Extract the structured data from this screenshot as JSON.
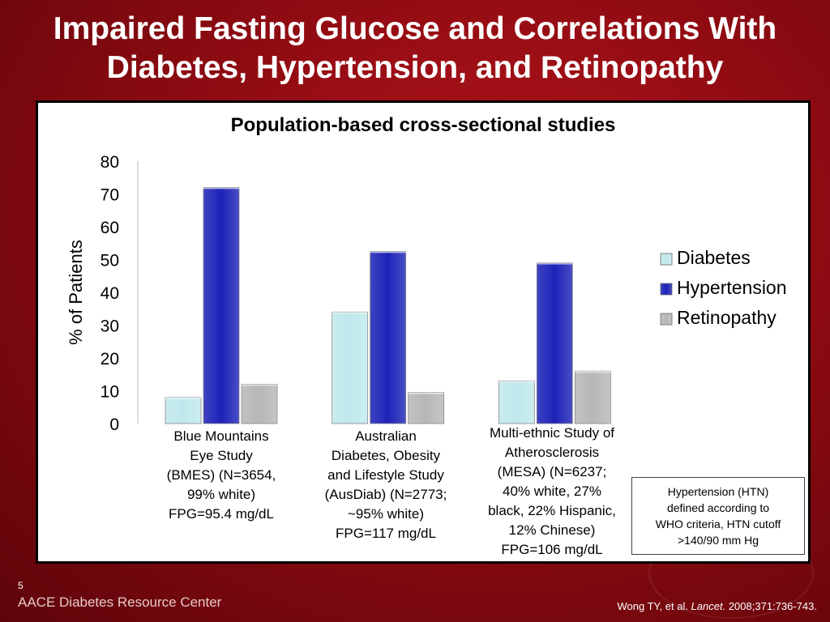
{
  "slide": {
    "title_lines": [
      "Impaired Fasting Glucose and Correlations With",
      "Diabetes, Hypertension, and Retinopathy"
    ],
    "slide_number": "5",
    "footer_brand": "AACE Diabetes Resource Center",
    "citation_prefix": "Wong TY, et al. ",
    "citation_journal": "Lancet.",
    "citation_suffix": " 2008;371:736-743."
  },
  "note": {
    "lines": [
      "Hypertension (HTN)",
      "defined according to",
      "WHO criteria, HTN cutoff",
      ">140/90 mm Hg"
    ]
  },
  "chart_data": {
    "type": "bar",
    "title": "Population-based cross-sectional studies",
    "ylabel": "% of Patients",
    "xlabel": "",
    "ylim": [
      0,
      80
    ],
    "yticks": [
      "0",
      "10",
      "20",
      "30",
      "40",
      "50",
      "60",
      "70",
      "80"
    ],
    "grid": false,
    "legend_position": "right",
    "categories": [
      [
        "Blue Mountains",
        "Eye Study",
        "(BMES) (N=3654,",
        "99% white)",
        "FPG=95.4 mg/dL"
      ],
      [
        "Australian",
        "Diabetes, Obesity",
        "and Lifestyle Study",
        "(AusDiab) (N=2773;",
        "~95% white)",
        "FPG=117 mg/dL"
      ],
      [
        "Multi-ethnic Study of",
        "Atherosclerosis",
        "(MESA) (N=6237;",
        "40% white, 27%",
        "black, 22% Hispanic,",
        "12% Chinese)",
        "FPG=106 mg/dL"
      ]
    ],
    "series": [
      {
        "name": "Diabetes",
        "values": [
          8,
          34,
          13
        ],
        "color": "#bfe8ec"
      },
      {
        "name": "Hypertension",
        "values": [
          72,
          52.5,
          49
        ],
        "color": "#1c22b8"
      },
      {
        "name": "Retinopathy",
        "values": [
          12,
          9.5,
          16
        ],
        "color": "#b7b7b7"
      }
    ]
  }
}
